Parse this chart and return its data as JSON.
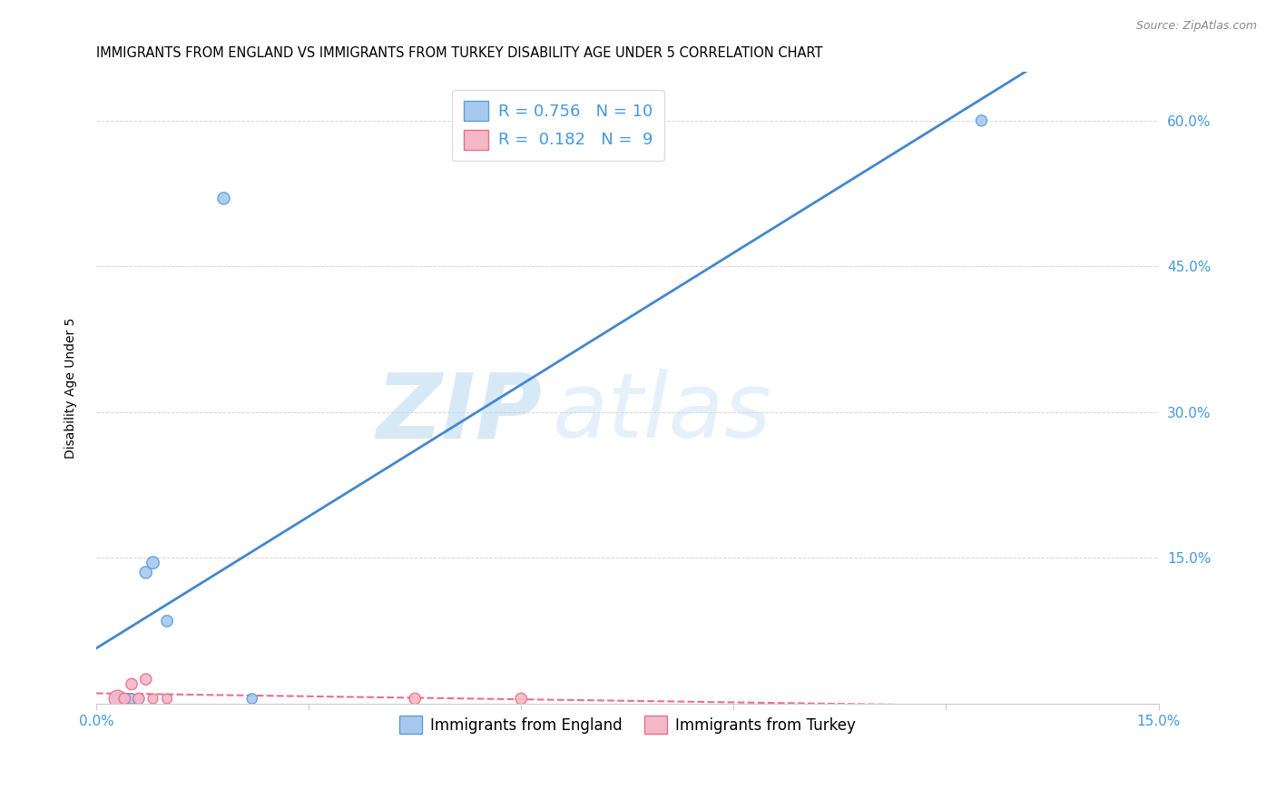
{
  "title": "IMMIGRANTS FROM ENGLAND VS IMMIGRANTS FROM TURKEY DISABILITY AGE UNDER 5 CORRELATION CHART",
  "source": "Source: ZipAtlas.com",
  "ylabel": "Disability Age Under 5",
  "xmin": 0.0,
  "xmax": 0.15,
  "ymin": 0.0,
  "ymax": 0.65,
  "right_yticks": [
    0.0,
    0.15,
    0.3,
    0.45,
    0.6
  ],
  "right_yticklabels": [
    "",
    "15.0%",
    "30.0%",
    "45.0%",
    "60.0%"
  ],
  "england_x": [
    0.003,
    0.004,
    0.005,
    0.006,
    0.007,
    0.008,
    0.01,
    0.018,
    0.022,
    0.125
  ],
  "england_y": [
    0.005,
    0.005,
    0.005,
    0.005,
    0.135,
    0.145,
    0.085,
    0.52,
    0.005,
    0.6
  ],
  "england_sizes": [
    80,
    70,
    70,
    65,
    90,
    95,
    80,
    90,
    65,
    75
  ],
  "turkey_x": [
    0.003,
    0.004,
    0.005,
    0.006,
    0.007,
    0.008,
    0.01,
    0.045,
    0.06
  ],
  "turkey_y": [
    0.005,
    0.005,
    0.02,
    0.005,
    0.025,
    0.005,
    0.005,
    0.005,
    0.005
  ],
  "turkey_sizes": [
    180,
    80,
    80,
    80,
    80,
    60,
    60,
    80,
    80
  ],
  "england_color": "#a8c8f0",
  "england_edge_color": "#5a9fd4",
  "turkey_color": "#f5b8c8",
  "turkey_edge_color": "#e8708a",
  "england_line_color": "#4488cc",
  "turkey_line_color": "#e87090",
  "R_england": 0.756,
  "N_england": 10,
  "R_turkey": 0.182,
  "N_turkey": 9,
  "legend_england": "Immigrants from England",
  "legend_turkey": "Immigrants from Turkey",
  "watermark_zip": "ZIP",
  "watermark_atlas": "atlas",
  "grid_color": "#cccccc",
  "background_color": "#ffffff",
  "title_fontsize": 10.5,
  "axis_label_fontsize": 10,
  "tick_fontsize": 11,
  "legend_fontsize": 13,
  "right_tick_color": "#4499dd",
  "x_tick_positions": [
    0.0,
    0.03,
    0.06,
    0.09,
    0.12,
    0.15
  ]
}
